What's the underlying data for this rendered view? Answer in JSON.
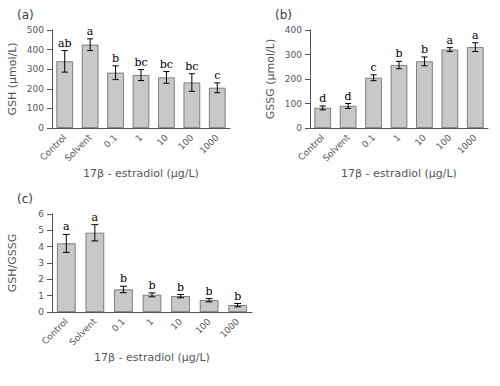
{
  "chart_data": [
    {
      "type": "bar",
      "title": "(a)",
      "categories": [
        "Control",
        "Solvent",
        "0.1",
        "1",
        "10",
        "100",
        "1000"
      ],
      "values": [
        340,
        425,
        282,
        270,
        258,
        232,
        205
      ],
      "errors": [
        55,
        30,
        35,
        28,
        30,
        45,
        25
      ],
      "annotations": [
        "ab",
        "a",
        "b",
        "bc",
        "bc",
        "bc",
        "c"
      ],
      "xlabel": "17β - estradiol (μg/L)",
      "ylabel": "GSH (μmol/L)",
      "ylim": [
        0,
        500
      ],
      "yticks": [
        0,
        100,
        200,
        300,
        400,
        500
      ],
      "color": "#c8c8c8",
      "grid": false
    },
    {
      "type": "bar",
      "title": "(b)",
      "categories": [
        "Control",
        "Solvent",
        "0.1",
        "1",
        "10",
        "100",
        "1000"
      ],
      "values": [
        82,
        90,
        205,
        257,
        272,
        320,
        330
      ],
      "errors": [
        8,
        10,
        12,
        15,
        18,
        8,
        18
      ],
      "annotations": [
        "d",
        "d",
        "c",
        "b",
        "b",
        "a",
        "a"
      ],
      "xlabel": "17β - estradiol (μg/L)",
      "ylabel": "GSSG (μmol/L)",
      "ylim": [
        0,
        400
      ],
      "yticks": [
        0,
        100,
        200,
        300,
        400
      ],
      "color": "#c8c8c8",
      "grid": false
    },
    {
      "type": "bar",
      "title": "(c)",
      "categories": [
        "Control",
        "Solvent",
        "0.1",
        "1",
        "10",
        "100",
        "1000"
      ],
      "values": [
        4.2,
        4.85,
        1.38,
        1.05,
        0.97,
        0.72,
        0.42
      ],
      "errors": [
        0.55,
        0.5,
        0.2,
        0.12,
        0.1,
        0.1,
        0.1
      ],
      "annotations": [
        "a",
        "a",
        "b",
        "b",
        "b",
        "b",
        "b"
      ],
      "xlabel": "17β - estradiol (μg/L)",
      "ylabel": "GSH/GSSG",
      "ylim": [
        0,
        6
      ],
      "yticks": [
        0,
        1,
        2,
        3,
        4,
        5,
        6
      ],
      "color": "#c8c8c8",
      "grid": false
    }
  ]
}
